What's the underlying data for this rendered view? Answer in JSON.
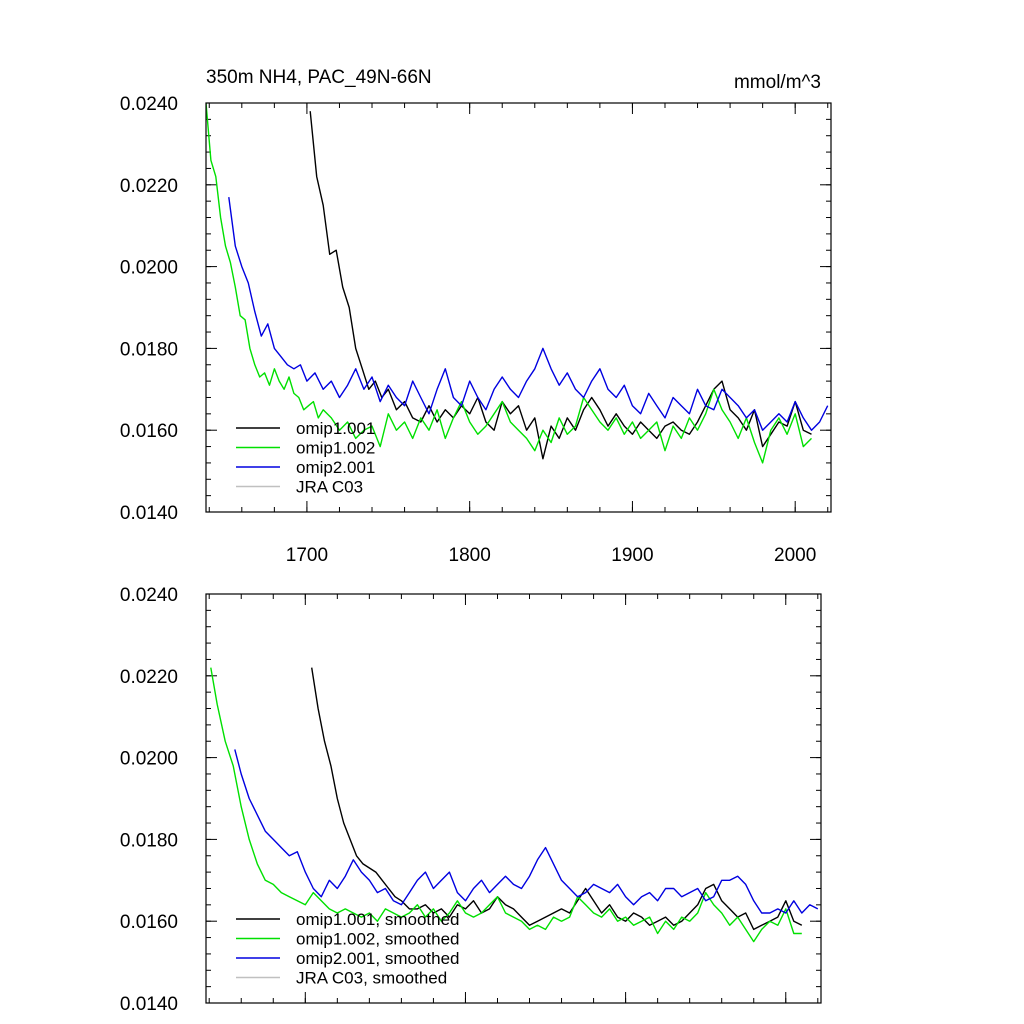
{
  "chart_data": [
    {
      "type": "line",
      "title_left": "350m NH4, PAC_49N-66N",
      "title_right": "mmol/m^3",
      "xlabel": "",
      "ylabel": "",
      "xlim": [
        1638,
        2022
      ],
      "ylim": [
        0.014,
        0.024
      ],
      "yticks": [
        0.014,
        0.016,
        0.018,
        0.02,
        0.022,
        0.024
      ],
      "ytick_labels": [
        "0.0140",
        "0.0160",
        "0.0180",
        "0.0200",
        "0.0220",
        "0.0240"
      ],
      "xticks": [
        1700,
        1800,
        1900,
        2000
      ],
      "xtick_labels": [
        "1700",
        "1800",
        "1900",
        "2000"
      ],
      "legend_position": "bottom-left",
      "series": [
        {
          "name": "omip1.001",
          "color": "#000000",
          "x": [
            1702,
            1706,
            1710,
            1714,
            1718,
            1722,
            1726,
            1730,
            1734,
            1738,
            1742,
            1746,
            1750,
            1755,
            1760,
            1765,
            1770,
            1775,
            1780,
            1785,
            1790,
            1795,
            1800,
            1805,
            1810,
            1815,
            1820,
            1825,
            1830,
            1835,
            1840,
            1845,
            1850,
            1855,
            1860,
            1865,
            1870,
            1875,
            1880,
            1885,
            1890,
            1895,
            1900,
            1905,
            1910,
            1915,
            1920,
            1925,
            1930,
            1935,
            1940,
            1945,
            1950,
            1955,
            1960,
            1965,
            1970,
            1975,
            1980,
            1985,
            1990,
            1995,
            2000,
            2005,
            2010
          ],
          "values": [
            0.0238,
            0.0222,
            0.0215,
            0.0203,
            0.0204,
            0.0195,
            0.019,
            0.018,
            0.0175,
            0.017,
            0.0172,
            0.0168,
            0.017,
            0.0165,
            0.0167,
            0.0163,
            0.0162,
            0.0166,
            0.0162,
            0.0165,
            0.0163,
            0.0166,
            0.0164,
            0.0168,
            0.0162,
            0.016,
            0.0167,
            0.0164,
            0.0166,
            0.016,
            0.0163,
            0.0153,
            0.0161,
            0.0158,
            0.0163,
            0.016,
            0.0165,
            0.0168,
            0.0165,
            0.0161,
            0.0164,
            0.0161,
            0.0159,
            0.0162,
            0.016,
            0.0158,
            0.0161,
            0.0162,
            0.016,
            0.0159,
            0.0162,
            0.0166,
            0.017,
            0.0172,
            0.0165,
            0.0163,
            0.016,
            0.0165,
            0.0156,
            0.0159,
            0.0162,
            0.0161,
            0.0167,
            0.016,
            0.0159
          ]
        },
        {
          "name": "omip1.002",
          "color": "#00e000",
          "x": [
            1638,
            1641,
            1644,
            1647,
            1650,
            1653,
            1656,
            1659,
            1662,
            1665,
            1668,
            1671,
            1674,
            1677,
            1680,
            1683,
            1686,
            1689,
            1692,
            1695,
            1698,
            1701,
            1704,
            1707,
            1710,
            1715,
            1720,
            1725,
            1730,
            1735,
            1740,
            1745,
            1750,
            1755,
            1760,
            1765,
            1770,
            1775,
            1780,
            1785,
            1790,
            1795,
            1800,
            1805,
            1810,
            1815,
            1820,
            1825,
            1830,
            1835,
            1840,
            1845,
            1850,
            1855,
            1860,
            1865,
            1870,
            1875,
            1880,
            1885,
            1890,
            1895,
            1900,
            1905,
            1910,
            1915,
            1920,
            1925,
            1930,
            1935,
            1940,
            1945,
            1950,
            1955,
            1960,
            1965,
            1970,
            1975,
            1980,
            1985,
            1990,
            1995,
            2000,
            2005,
            2010
          ],
          "values": [
            0.024,
            0.0226,
            0.0222,
            0.0212,
            0.0205,
            0.0201,
            0.0195,
            0.0188,
            0.0187,
            0.018,
            0.0176,
            0.0173,
            0.0174,
            0.0171,
            0.0175,
            0.0172,
            0.017,
            0.0173,
            0.0169,
            0.0168,
            0.0165,
            0.0166,
            0.0167,
            0.0163,
            0.0165,
            0.0163,
            0.016,
            0.0162,
            0.0158,
            0.016,
            0.0161,
            0.0156,
            0.0164,
            0.016,
            0.0162,
            0.0158,
            0.0163,
            0.016,
            0.0165,
            0.0158,
            0.0163,
            0.0167,
            0.0162,
            0.0159,
            0.0161,
            0.0164,
            0.0167,
            0.0162,
            0.016,
            0.0158,
            0.0155,
            0.016,
            0.0157,
            0.0163,
            0.0159,
            0.0161,
            0.0168,
            0.0165,
            0.0162,
            0.016,
            0.0163,
            0.0159,
            0.0162,
            0.0158,
            0.016,
            0.0162,
            0.0155,
            0.0161,
            0.0158,
            0.0163,
            0.016,
            0.0164,
            0.017,
            0.0165,
            0.0162,
            0.0158,
            0.0163,
            0.0157,
            0.0152,
            0.016,
            0.0163,
            0.0159,
            0.0164,
            0.0156,
            0.0158
          ]
        },
        {
          "name": "omip2.001",
          "color": "#0000e0",
          "x": [
            1652,
            1656,
            1660,
            1664,
            1668,
            1672,
            1676,
            1680,
            1684,
            1688,
            1692,
            1696,
            1700,
            1705,
            1710,
            1715,
            1720,
            1725,
            1730,
            1735,
            1740,
            1745,
            1750,
            1755,
            1760,
            1765,
            1770,
            1775,
            1780,
            1785,
            1790,
            1795,
            1800,
            1805,
            1810,
            1815,
            1820,
            1825,
            1830,
            1835,
            1840,
            1845,
            1850,
            1855,
            1860,
            1865,
            1870,
            1875,
            1880,
            1885,
            1890,
            1895,
            1900,
            1905,
            1910,
            1915,
            1920,
            1925,
            1930,
            1935,
            1940,
            1945,
            1950,
            1955,
            1960,
            1965,
            1970,
            1975,
            1980,
            1985,
            1990,
            1995,
            2000,
            2005,
            2010,
            2015,
            2020
          ],
          "values": [
            0.0217,
            0.0205,
            0.02,
            0.0196,
            0.0189,
            0.0183,
            0.0186,
            0.018,
            0.0178,
            0.0176,
            0.0175,
            0.0176,
            0.0172,
            0.0174,
            0.017,
            0.0172,
            0.0168,
            0.0171,
            0.0175,
            0.017,
            0.0173,
            0.0167,
            0.0171,
            0.0168,
            0.0166,
            0.0172,
            0.0168,
            0.0164,
            0.017,
            0.0175,
            0.0168,
            0.0166,
            0.0172,
            0.0168,
            0.0165,
            0.017,
            0.0173,
            0.017,
            0.0168,
            0.0172,
            0.0175,
            0.018,
            0.0175,
            0.0171,
            0.0174,
            0.017,
            0.0168,
            0.0172,
            0.0175,
            0.017,
            0.0168,
            0.0171,
            0.0166,
            0.0164,
            0.0169,
            0.0166,
            0.0163,
            0.0168,
            0.0166,
            0.0164,
            0.017,
            0.0166,
            0.0165,
            0.017,
            0.0168,
            0.0166,
            0.0163,
            0.0165,
            0.016,
            0.0162,
            0.0164,
            0.0162,
            0.0167,
            0.0163,
            0.016,
            0.0162,
            0.0166
          ]
        },
        {
          "name": "JRA C03",
          "color": "#c0c0c0",
          "x": [],
          "values": []
        }
      ]
    },
    {
      "type": "line",
      "title_left": "",
      "title_right": "",
      "xlabel": "",
      "ylabel": "",
      "xlim": [
        1638,
        2022
      ],
      "ylim": [
        0.014,
        0.024
      ],
      "yticks": [
        0.014,
        0.016,
        0.018,
        0.02,
        0.022,
        0.024
      ],
      "ytick_labels": [
        "0.0140",
        "0.0160",
        "0.0180",
        "0.0200",
        "0.0220",
        "0.0240"
      ],
      "xticks": [
        1700,
        1800,
        1900,
        2000
      ],
      "xtick_labels": [],
      "legend_position": "bottom-left",
      "series": [
        {
          "name": "omip1.001, smoothed",
          "color": "#000000",
          "x": [
            1704,
            1708,
            1712,
            1716,
            1720,
            1724,
            1728,
            1732,
            1736,
            1740,
            1744,
            1748,
            1752,
            1756,
            1760,
            1765,
            1770,
            1775,
            1780,
            1785,
            1790,
            1795,
            1800,
            1805,
            1810,
            1815,
            1820,
            1825,
            1830,
            1835,
            1840,
            1845,
            1850,
            1855,
            1860,
            1865,
            1870,
            1875,
            1880,
            1885,
            1890,
            1895,
            1900,
            1905,
            1910,
            1915,
            1920,
            1925,
            1930,
            1935,
            1940,
            1945,
            1950,
            1955,
            1960,
            1965,
            1970,
            1975,
            1980,
            1985,
            1990,
            1995,
            2000,
            2005,
            2010
          ],
          "values": [
            0.0222,
            0.0212,
            0.0204,
            0.0198,
            0.019,
            0.0184,
            0.018,
            0.0176,
            0.0174,
            0.0173,
            0.0172,
            0.017,
            0.0168,
            0.0166,
            0.0165,
            0.0163,
            0.0163,
            0.0164,
            0.0162,
            0.0163,
            0.0161,
            0.0164,
            0.0163,
            0.0165,
            0.0162,
            0.0163,
            0.0166,
            0.0164,
            0.0163,
            0.0161,
            0.0159,
            0.016,
            0.0161,
            0.0162,
            0.0163,
            0.0162,
            0.0165,
            0.0168,
            0.0165,
            0.0162,
            0.0164,
            0.0161,
            0.016,
            0.0162,
            0.0161,
            0.0159,
            0.016,
            0.0161,
            0.0159,
            0.016,
            0.0162,
            0.0164,
            0.0168,
            0.0169,
            0.0165,
            0.0163,
            0.0161,
            0.0162,
            0.0158,
            0.0159,
            0.016,
            0.0161,
            0.0165,
            0.016,
            0.0159
          ]
        },
        {
          "name": "omip1.002, smoothed",
          "color": "#00e000",
          "x": [
            1641,
            1645,
            1650,
            1655,
            1660,
            1665,
            1670,
            1675,
            1680,
            1685,
            1690,
            1695,
            1700,
            1705,
            1710,
            1715,
            1720,
            1725,
            1730,
            1735,
            1740,
            1745,
            1750,
            1755,
            1760,
            1765,
            1770,
            1775,
            1780,
            1785,
            1790,
            1795,
            1800,
            1805,
            1810,
            1815,
            1820,
            1825,
            1830,
            1835,
            1840,
            1845,
            1850,
            1855,
            1860,
            1865,
            1870,
            1875,
            1880,
            1885,
            1890,
            1895,
            1900,
            1905,
            1910,
            1915,
            1920,
            1925,
            1930,
            1935,
            1940,
            1945,
            1950,
            1955,
            1960,
            1965,
            1970,
            1975,
            1980,
            1985,
            1990,
            1995,
            2000,
            2005,
            2010
          ],
          "values": [
            0.0222,
            0.0213,
            0.0204,
            0.0198,
            0.0188,
            0.018,
            0.0174,
            0.017,
            0.0169,
            0.0167,
            0.0166,
            0.0165,
            0.0164,
            0.0167,
            0.0165,
            0.0163,
            0.0162,
            0.0163,
            0.0162,
            0.0161,
            0.0162,
            0.016,
            0.0163,
            0.0162,
            0.0161,
            0.0162,
            0.0164,
            0.0161,
            0.0163,
            0.016,
            0.0162,
            0.0165,
            0.0162,
            0.0161,
            0.0162,
            0.0164,
            0.0166,
            0.0162,
            0.0161,
            0.016,
            0.0158,
            0.0159,
            0.0158,
            0.0161,
            0.016,
            0.0161,
            0.0166,
            0.0164,
            0.0162,
            0.0161,
            0.0163,
            0.016,
            0.0161,
            0.0159,
            0.016,
            0.0161,
            0.0157,
            0.016,
            0.0158,
            0.0161,
            0.016,
            0.0162,
            0.0167,
            0.0164,
            0.0162,
            0.0159,
            0.0161,
            0.0158,
            0.0155,
            0.0158,
            0.016,
            0.0159,
            0.0163,
            0.0157,
            0.0157
          ]
        },
        {
          "name": "omip2.001, smoothed",
          "color": "#0000e0",
          "x": [
            1656,
            1660,
            1665,
            1670,
            1675,
            1680,
            1685,
            1690,
            1695,
            1700,
            1705,
            1710,
            1715,
            1720,
            1725,
            1730,
            1735,
            1740,
            1745,
            1750,
            1755,
            1760,
            1765,
            1770,
            1775,
            1780,
            1785,
            1790,
            1795,
            1800,
            1805,
            1810,
            1815,
            1820,
            1825,
            1830,
            1835,
            1840,
            1845,
            1850,
            1855,
            1860,
            1865,
            1870,
            1875,
            1880,
            1885,
            1890,
            1895,
            1900,
            1905,
            1910,
            1915,
            1920,
            1925,
            1930,
            1935,
            1940,
            1945,
            1950,
            1955,
            1960,
            1965,
            1970,
            1975,
            1980,
            1985,
            1990,
            1995,
            2000,
            2005,
            2010,
            2015,
            2020
          ],
          "values": [
            0.0202,
            0.0196,
            0.019,
            0.0186,
            0.0182,
            0.018,
            0.0178,
            0.0176,
            0.0177,
            0.0172,
            0.0168,
            0.0166,
            0.017,
            0.0168,
            0.0171,
            0.0175,
            0.0172,
            0.017,
            0.0167,
            0.0168,
            0.0165,
            0.0164,
            0.0167,
            0.017,
            0.0172,
            0.0168,
            0.017,
            0.0172,
            0.0167,
            0.0165,
            0.0168,
            0.017,
            0.0167,
            0.0169,
            0.0171,
            0.0169,
            0.0168,
            0.0171,
            0.0175,
            0.0178,
            0.0174,
            0.017,
            0.0168,
            0.0166,
            0.0167,
            0.0169,
            0.0168,
            0.0167,
            0.0169,
            0.0166,
            0.0164,
            0.0166,
            0.0167,
            0.0165,
            0.0168,
            0.0168,
            0.0166,
            0.0167,
            0.0168,
            0.0165,
            0.0166,
            0.017,
            0.017,
            0.0171,
            0.0169,
            0.0165,
            0.0162,
            0.0162,
            0.0163,
            0.0162,
            0.0165,
            0.0162,
            0.0164,
            0.0163
          ]
        },
        {
          "name": "JRA C03, smoothed",
          "color": "#c0c0c0",
          "x": [],
          "values": []
        }
      ]
    }
  ]
}
